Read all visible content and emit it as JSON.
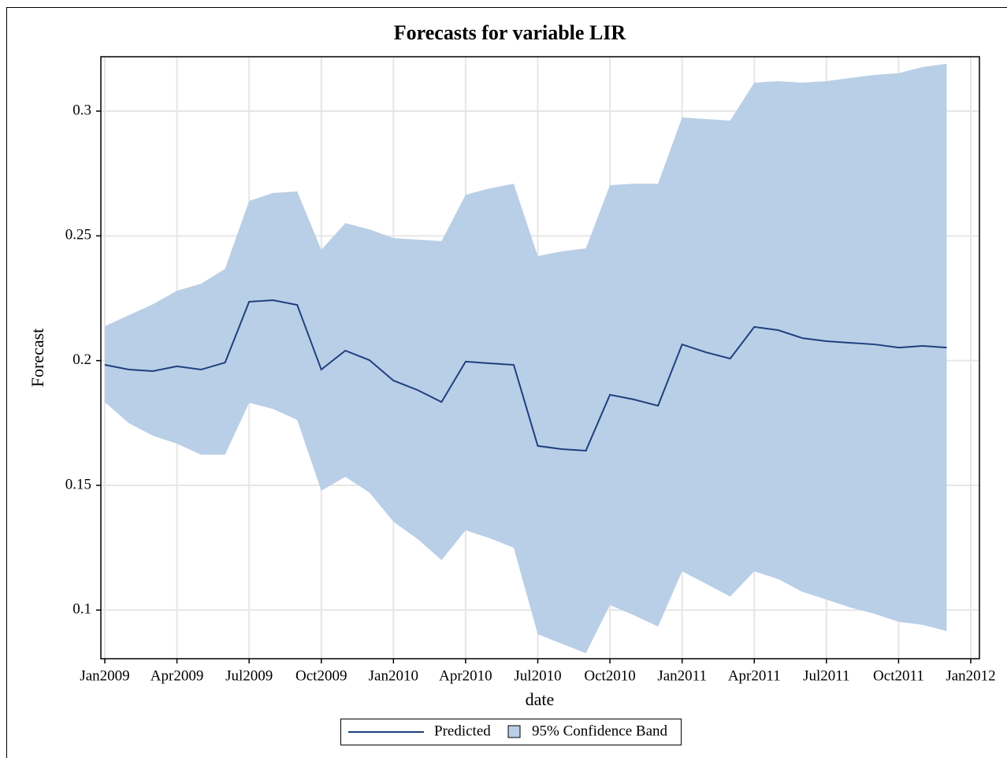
{
  "chart_data": {
    "type": "line",
    "title": "Forecasts for variable LIR",
    "x_label": "date",
    "y_label": "Forecast",
    "x": [
      "2009-01",
      "2009-02",
      "2009-03",
      "2009-04",
      "2009-05",
      "2009-06",
      "2009-07",
      "2009-08",
      "2009-09",
      "2009-10",
      "2009-11",
      "2009-12",
      "2010-01",
      "2010-02",
      "2010-03",
      "2010-04",
      "2010-05",
      "2010-06",
      "2010-07",
      "2010-08",
      "2010-09",
      "2010-10",
      "2010-11",
      "2010-12",
      "2011-01",
      "2011-02",
      "2011-03",
      "2011-04",
      "2011-05",
      "2011-06",
      "2011-07",
      "2011-08",
      "2011-09",
      "2011-10",
      "2011-11",
      "2011-12"
    ],
    "series": [
      {
        "name": "Predicted",
        "color": "#1f3f7f",
        "values": [
          0.1983,
          0.1964,
          0.1958,
          0.1977,
          0.1964,
          0.1992,
          0.2236,
          0.2242,
          0.2223,
          0.1964,
          0.204,
          0.2002,
          0.192,
          0.1882,
          0.1834,
          0.1996,
          0.1989,
          0.1983,
          0.1658,
          0.1645,
          0.1639,
          0.1863,
          0.1844,
          0.1819,
          0.2065,
          0.2033,
          0.2008,
          0.2135,
          0.2122,
          0.209,
          0.2078,
          0.2071,
          0.2065,
          0.2052,
          0.2059,
          0.2052
        ]
      },
      {
        "name": "95% Confidence Band",
        "color": "#b9cfe7",
        "upper": [
          0.2138,
          0.2182,
          0.2226,
          0.228,
          0.2308,
          0.2368,
          0.264,
          0.2672,
          0.2678,
          0.2444,
          0.2551,
          0.2526,
          0.2491,
          0.2485,
          0.2479,
          0.2665,
          0.269,
          0.2709,
          0.2419,
          0.2438,
          0.245,
          0.2703,
          0.2709,
          0.2709,
          0.2975,
          0.2968,
          0.2962,
          0.3114,
          0.312,
          0.3114,
          0.312,
          0.3133,
          0.3145,
          0.3152,
          0.3177,
          0.319
        ],
        "lower": [
          0.1834,
          0.1749,
          0.1699,
          0.1667,
          0.1623,
          0.1623,
          0.1831,
          0.1806,
          0.1762,
          0.1478,
          0.1534,
          0.1471,
          0.1354,
          0.1285,
          0.12,
          0.132,
          0.1288,
          0.125,
          0.0903,
          0.0865,
          0.0827,
          0.102,
          0.0979,
          0.0934,
          0.1155,
          0.1105,
          0.1054,
          0.1155,
          0.1124,
          0.1073,
          0.1042,
          0.101,
          0.0985,
          0.0953,
          0.0941,
          0.0916
        ]
      }
    ],
    "xlim": [
      "2009-01",
      "2012-01"
    ],
    "xticks": [
      {
        "value": "2009-01",
        "label": "Jan2009"
      },
      {
        "value": "2009-04",
        "label": "Apr2009"
      },
      {
        "value": "2009-07",
        "label": "Jul2009"
      },
      {
        "value": "2009-10",
        "label": "Oct2009"
      },
      {
        "value": "2010-01",
        "label": "Jan2010"
      },
      {
        "value": "2010-04",
        "label": "Apr2010"
      },
      {
        "value": "2010-07",
        "label": "Jul2010"
      },
      {
        "value": "2010-10",
        "label": "Oct2010"
      },
      {
        "value": "2011-01",
        "label": "Jan2011"
      },
      {
        "value": "2011-04",
        "label": "Apr2011"
      },
      {
        "value": "2011-07",
        "label": "Jul2011"
      },
      {
        "value": "2011-10",
        "label": "Oct2011"
      },
      {
        "value": "2012-01",
        "label": "Jan2012"
      }
    ],
    "ylim": [
      0.0805,
      0.3218
    ],
    "yticks": [
      0.1,
      0.15,
      0.2,
      0.25,
      0.3
    ],
    "grid": true
  }
}
